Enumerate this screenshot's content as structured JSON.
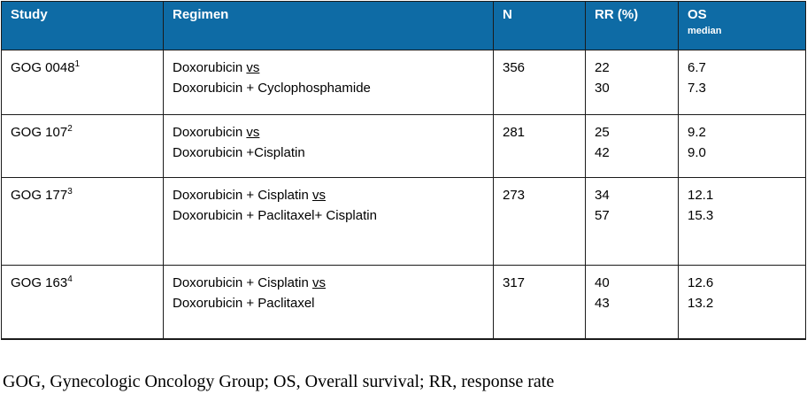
{
  "table": {
    "headers": {
      "study": "Study",
      "regimen": "Regimen",
      "n": "N",
      "rr": "RR (%)",
      "os": "OS",
      "os_sub": "median"
    },
    "rows": [
      {
        "study": "GOG 0048",
        "ref": "1",
        "regimen_line1": "Doxorubicin",
        "regimen_vs": "vs",
        "regimen_line2": "Doxorubicin + Cyclophosphamide",
        "n": "356",
        "rr1": "22",
        "rr2": "30",
        "os1": "6.7",
        "os2": "7.3"
      },
      {
        "study": "GOG 107",
        "ref": "2",
        "regimen_line1": "Doxorubicin",
        "regimen_vs": "vs",
        "regimen_line2": "Doxorubicin +Cisplatin",
        "n": "281",
        "rr1": "25",
        "rr2": "42",
        "os1": "9.2",
        "os2": "9.0"
      },
      {
        "study": "GOG 177",
        "ref": "3",
        "regimen_line1": "Doxorubicin + Cisplatin",
        "regimen_vs": "vs",
        "regimen_line2": "Doxorubicin + Paclitaxel+ Cisplatin",
        "n": "273",
        "rr1": "34",
        "rr2": "57",
        "os1": "12.1",
        "os2": "15.3"
      },
      {
        "study": "GOG 163",
        "ref": "4",
        "regimen_line1": "Doxorubicin + Cisplatin",
        "regimen_vs": "vs",
        "regimen_line2": "Doxorubicin + Paclitaxel",
        "n": "317",
        "rr1": "40",
        "rr2": "43",
        "os1": "12.6",
        "os2": "13.2"
      }
    ]
  },
  "footnote": "GOG, Gynecologic Oncology Group; OS, Overall survival; RR, response rate"
}
